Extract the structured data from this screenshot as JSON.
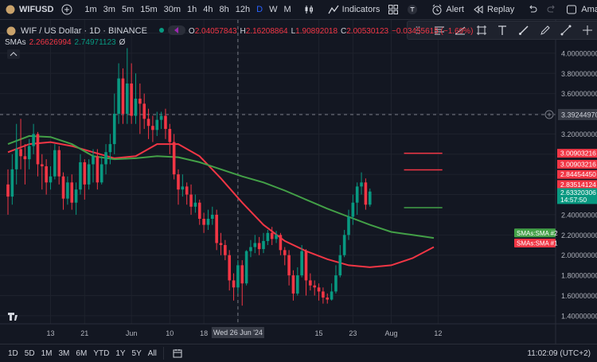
{
  "toolbar": {
    "symbol": "WIFUSD",
    "timeframes": [
      "1m",
      "3m",
      "5m",
      "15m",
      "30m",
      "1h",
      "4h",
      "8h",
      "12h",
      "D",
      "W",
      "M"
    ],
    "active_timeframe": "D",
    "indicators_label": "Indicators",
    "alert_label": "Alert",
    "replay_label": "Replay",
    "account_label": "Ama"
  },
  "legend": {
    "title": "WIF / US Dollar · 1D · BINANCE",
    "ohlc": {
      "o_label": "O",
      "o": "2.04057843",
      "h_label": "H",
      "h": "2.16208864",
      "l_label": "L",
      "l": "1.90892018",
      "c_label": "C",
      "c": "2.00530123",
      "change": "−0.03455615 (−1.69%)"
    },
    "sma_name": "SMAs",
    "sma_values": [
      "2.26626994",
      "2.74971123"
    ],
    "sma_hidden_symbol": "Ø"
  },
  "bottom": {
    "ranges": [
      "1D",
      "5D",
      "1M",
      "3M",
      "6M",
      "YTD",
      "1Y",
      "5Y",
      "All"
    ],
    "clock": "11:02:09 (UTC+2)"
  },
  "colors": {
    "bg": "#131722",
    "grid": "#1e222d",
    "up": "#089981",
    "down": "#f23645",
    "sma1": "#f23645",
    "sma2": "#43a047",
    "hline_red": "#f23645",
    "hline_green": "#43a047"
  },
  "chart_data": {
    "type": "candlestick",
    "title": "WIF / US Dollar · 1D · BINANCE",
    "ylim": [
      1.32,
      4.33
    ],
    "y_ticks": [
      "4.20000000",
      "4.00000000",
      "3.80000000",
      "3.60000000",
      "3.40000000",
      "3.20000000",
      "3.00000000",
      "2.80000000",
      "2.60000000",
      "2.40000000",
      "2.20000000",
      "2.00000000",
      "1.80000000",
      "1.60000000",
      "1.40000000"
    ],
    "x_ticks": [
      {
        "i": 10,
        "label": "13"
      },
      {
        "i": 18,
        "label": "21"
      },
      {
        "i": 29,
        "label": "Jun"
      },
      {
        "i": 38,
        "label": "10"
      },
      {
        "i": 46,
        "label": "18"
      },
      {
        "i": 54,
        "label": "ul"
      },
      {
        "i": 73,
        "label": "15"
      },
      {
        "i": 81,
        "label": "23"
      },
      {
        "i": 90,
        "label": "Aug"
      },
      {
        "i": 101,
        "label": "12"
      }
    ],
    "crosshair": {
      "i": 54,
      "date": "Wed 26 Jun '24",
      "price": "3.39244970"
    },
    "candles": [
      [
        2.7,
        2.58,
        2.4,
        2.85
      ],
      [
        2.58,
        2.85,
        2.5,
        3.0
      ],
      [
        2.85,
        3.05,
        2.7,
        3.3
      ],
      [
        3.05,
        2.98,
        2.85,
        3.35
      ],
      [
        2.98,
        2.95,
        2.7,
        3.1
      ],
      [
        2.95,
        3.08,
        2.85,
        3.15
      ],
      [
        3.08,
        3.2,
        3.0,
        3.3
      ],
      [
        3.2,
        2.9,
        2.78,
        3.22
      ],
      [
        2.9,
        2.88,
        2.65,
        3.0
      ],
      [
        2.88,
        2.72,
        2.6,
        2.95
      ],
      [
        2.72,
        2.78,
        2.65,
        2.88
      ],
      [
        2.78,
        3.04,
        2.75,
        3.1
      ],
      [
        3.04,
        2.78,
        2.7,
        3.08
      ],
      [
        2.78,
        2.56,
        2.45,
        2.82
      ],
      [
        2.56,
        2.72,
        2.5,
        2.78
      ],
      [
        2.72,
        2.52,
        2.45,
        2.8
      ],
      [
        2.52,
        2.65,
        2.4,
        2.72
      ],
      [
        2.65,
        2.92,
        2.6,
        3.0
      ],
      [
        2.92,
        2.7,
        2.55,
        2.95
      ],
      [
        2.7,
        2.9,
        2.65,
        2.95
      ],
      [
        2.9,
        2.98,
        2.72,
        3.05
      ],
      [
        2.98,
        2.72,
        2.65,
        3.05
      ],
      [
        2.72,
        2.9,
        2.7,
        2.98
      ],
      [
        2.9,
        3.02,
        2.8,
        3.1
      ],
      [
        3.02,
        3.1,
        2.9,
        3.2
      ],
      [
        3.1,
        3.4,
        3.0,
        3.6
      ],
      [
        3.4,
        3.75,
        3.3,
        3.9
      ],
      [
        3.75,
        3.4,
        3.3,
        3.85
      ],
      [
        3.4,
        3.7,
        3.3,
        4.05
      ],
      [
        3.7,
        3.38,
        3.3,
        3.9
      ],
      [
        3.38,
        3.55,
        3.3,
        3.8
      ],
      [
        3.55,
        3.5,
        3.2,
        3.7
      ],
      [
        3.5,
        3.35,
        3.25,
        3.6
      ],
      [
        3.35,
        3.28,
        3.15,
        3.45
      ],
      [
        3.28,
        3.24,
        3.12,
        3.38
      ],
      [
        3.24,
        3.34,
        3.18,
        3.42
      ],
      [
        3.34,
        3.38,
        3.25,
        3.42
      ],
      [
        3.38,
        3.25,
        3.15,
        3.45
      ],
      [
        3.25,
        3.12,
        3.0,
        3.3
      ],
      [
        3.12,
        2.8,
        2.75,
        3.2
      ],
      [
        2.8,
        2.65,
        2.5,
        2.85
      ],
      [
        2.65,
        2.68,
        2.58,
        2.8
      ],
      [
        2.68,
        2.6,
        2.5,
        2.72
      ],
      [
        2.6,
        2.48,
        2.4,
        2.7
      ],
      [
        2.48,
        2.52,
        2.42,
        2.6
      ],
      [
        2.52,
        2.36,
        2.3,
        2.55
      ],
      [
        2.36,
        2.3,
        2.22,
        2.42
      ],
      [
        2.3,
        2.36,
        2.25,
        2.45
      ],
      [
        2.36,
        2.4,
        2.3,
        2.48
      ],
      [
        2.4,
        2.12,
        2.05,
        2.45
      ],
      [
        2.12,
        2.1,
        2.0,
        2.22
      ],
      [
        2.1,
        2.0,
        1.95,
        2.15
      ],
      [
        2.0,
        1.75,
        1.65,
        2.05
      ],
      [
        1.75,
        1.68,
        1.55,
        1.82
      ],
      [
        1.68,
        1.9,
        1.62,
        1.95
      ],
      [
        1.9,
        1.72,
        1.5,
        1.95
      ],
      [
        1.72,
        2.04,
        1.7,
        2.05
      ],
      [
        2.04,
        2.08,
        1.98,
        2.15
      ],
      [
        2.08,
        2.12,
        2.02,
        2.2
      ],
      [
        2.12,
        2.06,
        2.0,
        2.18
      ],
      [
        2.06,
        2.14,
        2.02,
        2.22
      ],
      [
        2.14,
        2.22,
        2.1,
        2.25
      ],
      [
        2.22,
        2.16,
        2.1,
        2.28
      ],
      [
        2.16,
        2.2,
        2.12,
        2.24
      ],
      [
        2.2,
        2.05,
        2.0,
        2.22
      ],
      [
        2.05,
        2.0,
        1.9,
        2.08
      ],
      [
        2.0,
        1.8,
        1.7,
        2.05
      ],
      [
        1.8,
        1.62,
        1.55,
        1.85
      ],
      [
        1.62,
        1.8,
        1.6,
        1.88
      ],
      [
        1.8,
        2.04,
        1.78,
        2.1
      ],
      [
        2.04,
        1.75,
        1.6,
        2.06
      ],
      [
        1.75,
        1.7,
        1.65,
        1.82
      ],
      [
        1.7,
        1.68,
        1.6,
        1.75
      ],
      [
        1.68,
        1.64,
        1.55,
        1.72
      ],
      [
        1.64,
        1.58,
        1.52,
        1.68
      ],
      [
        1.58,
        1.56,
        1.52,
        1.62
      ],
      [
        1.56,
        1.64,
        1.55,
        1.72
      ],
      [
        1.64,
        1.8,
        1.62,
        1.9
      ],
      [
        1.8,
        2.0,
        1.78,
        2.1
      ],
      [
        2.0,
        2.2,
        1.98,
        2.25
      ],
      [
        2.2,
        2.38,
        2.15,
        2.45
      ],
      [
        2.38,
        2.52,
        2.3,
        2.6
      ],
      [
        2.52,
        2.68,
        2.4,
        2.72
      ],
      [
        2.68,
        2.72,
        2.6,
        2.82
      ],
      [
        2.72,
        2.5,
        2.45,
        2.76
      ],
      [
        2.5,
        2.63,
        2.48,
        2.66
      ]
    ],
    "series": [
      {
        "name": "SMA #1",
        "values": [
          [
            0,
            3.02
          ],
          [
            5,
            3.1
          ],
          [
            10,
            3.12
          ],
          [
            15,
            3.08
          ],
          [
            20,
            3.02
          ],
          [
            25,
            2.96
          ],
          [
            30,
            2.98
          ],
          [
            35,
            3.1
          ],
          [
            40,
            3.1
          ],
          [
            45,
            2.98
          ],
          [
            50,
            2.76
          ],
          [
            55,
            2.52
          ],
          [
            60,
            2.3
          ],
          [
            65,
            2.14
          ],
          [
            70,
            2.04
          ],
          [
            75,
            1.96
          ],
          [
            80,
            1.9
          ],
          [
            85,
            1.88
          ],
          [
            90,
            1.9
          ],
          [
            95,
            1.97
          ],
          [
            100,
            2.08
          ]
        ]
      },
      {
        "name": "SMA #2",
        "values": [
          [
            0,
            3.1
          ],
          [
            5,
            3.18
          ],
          [
            10,
            3.17
          ],
          [
            15,
            3.1
          ],
          [
            20,
            2.98
          ],
          [
            25,
            2.95
          ],
          [
            30,
            2.96
          ],
          [
            35,
            2.98
          ],
          [
            40,
            2.97
          ],
          [
            45,
            2.92
          ],
          [
            50,
            2.85
          ],
          [
            55,
            2.78
          ],
          [
            60,
            2.72
          ],
          [
            65,
            2.64
          ],
          [
            70,
            2.55
          ],
          [
            75,
            2.46
          ],
          [
            80,
            2.38
          ],
          [
            85,
            2.3
          ],
          [
            90,
            2.23
          ],
          [
            95,
            2.2
          ],
          [
            100,
            2.17
          ]
        ]
      }
    ],
    "horizontal_lines": [
      {
        "i0": 93,
        "i1": 102,
        "price": 3.00903216,
        "color": "red"
      },
      {
        "i0": 93,
        "i1": 102,
        "price": 2.8445445,
        "color": "red"
      },
      {
        "i0": 93,
        "i1": 102,
        "price": 2.47,
        "color": "green"
      }
    ],
    "price_labels": [
      {
        "price": 3.00903216,
        "text": "3.00903216",
        "bg": "#f23645"
      },
      {
        "price": 2.9,
        "text": "3.00903216",
        "bg": "#f23645"
      },
      {
        "price": 2.8,
        "text": "2.84454450",
        "bg": "#f23645"
      },
      {
        "price": 2.7,
        "text": "2.83514124",
        "bg": "#f23645"
      },
      {
        "price": 2.62,
        "text": "2.63320306",
        "bg": "#089981"
      },
      {
        "price": 2.55,
        "text": "14:57:50",
        "bg": "#089981"
      }
    ],
    "series_tags": [
      {
        "price": 2.22,
        "text": "SMAs:SMA #2",
        "color": "#43a047"
      },
      {
        "price": 2.12,
        "text": "SMAs:SMA #1",
        "color": "#f23645"
      }
    ]
  }
}
